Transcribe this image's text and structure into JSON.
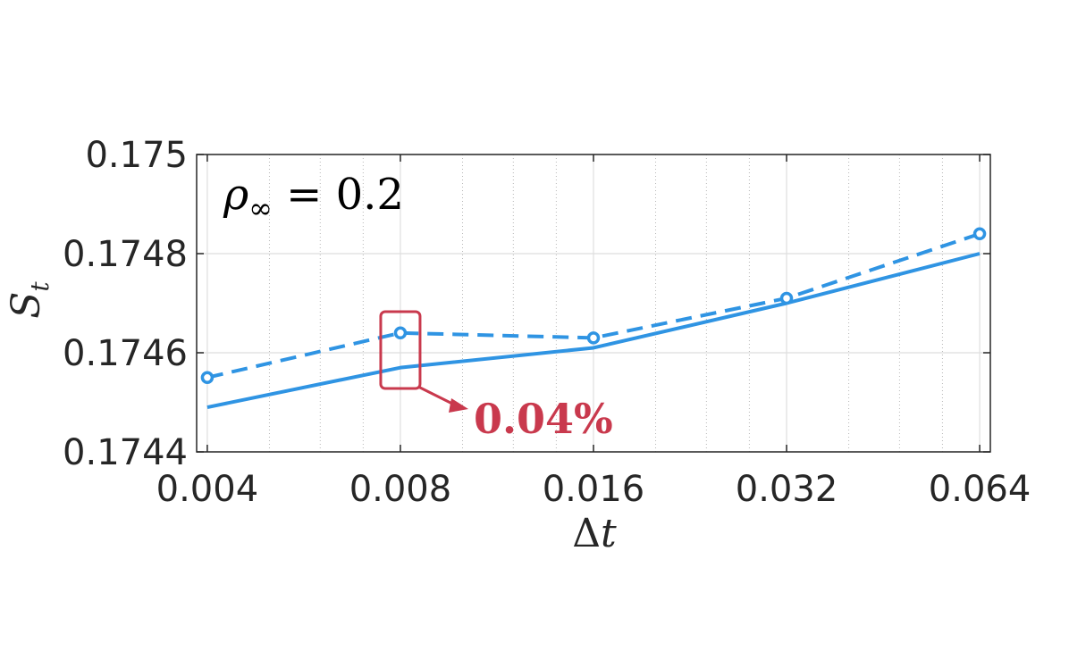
{
  "chart_data": {
    "type": "line",
    "xscale": "log2",
    "x": [
      0.004,
      0.008,
      0.016,
      0.032,
      0.064
    ],
    "xticks": [
      "0.004",
      "0.008",
      "0.016",
      "0.032",
      "0.064"
    ],
    "xlim": [
      0.00385,
      0.0665
    ],
    "yticks": [
      "0.1744",
      "0.1746",
      "0.1748",
      "0.175"
    ],
    "ylim": [
      0.1744,
      0.175
    ],
    "xlabel_symbol": "Δ",
    "xlabel_var": "t",
    "ylabel_symbol": "S",
    "ylabel_sub": "t",
    "grid": true,
    "series": [
      {
        "style": "solid",
        "marker": "none",
        "color": "#2f94e3",
        "values": [
          0.17449,
          0.17457,
          0.17461,
          0.1747,
          0.1748
        ]
      },
      {
        "style": "dashed",
        "marker": "circle",
        "color": "#2f94e3",
        "values": [
          0.17455,
          0.17464,
          0.17463,
          0.17471,
          0.17484
        ]
      }
    ],
    "text_annotation": {
      "rho": "ρ",
      "sub": "∞",
      "rest": " = 0.2"
    },
    "highlight": {
      "x": 0.008,
      "label": "0.04%",
      "color": "#c9394d"
    }
  }
}
